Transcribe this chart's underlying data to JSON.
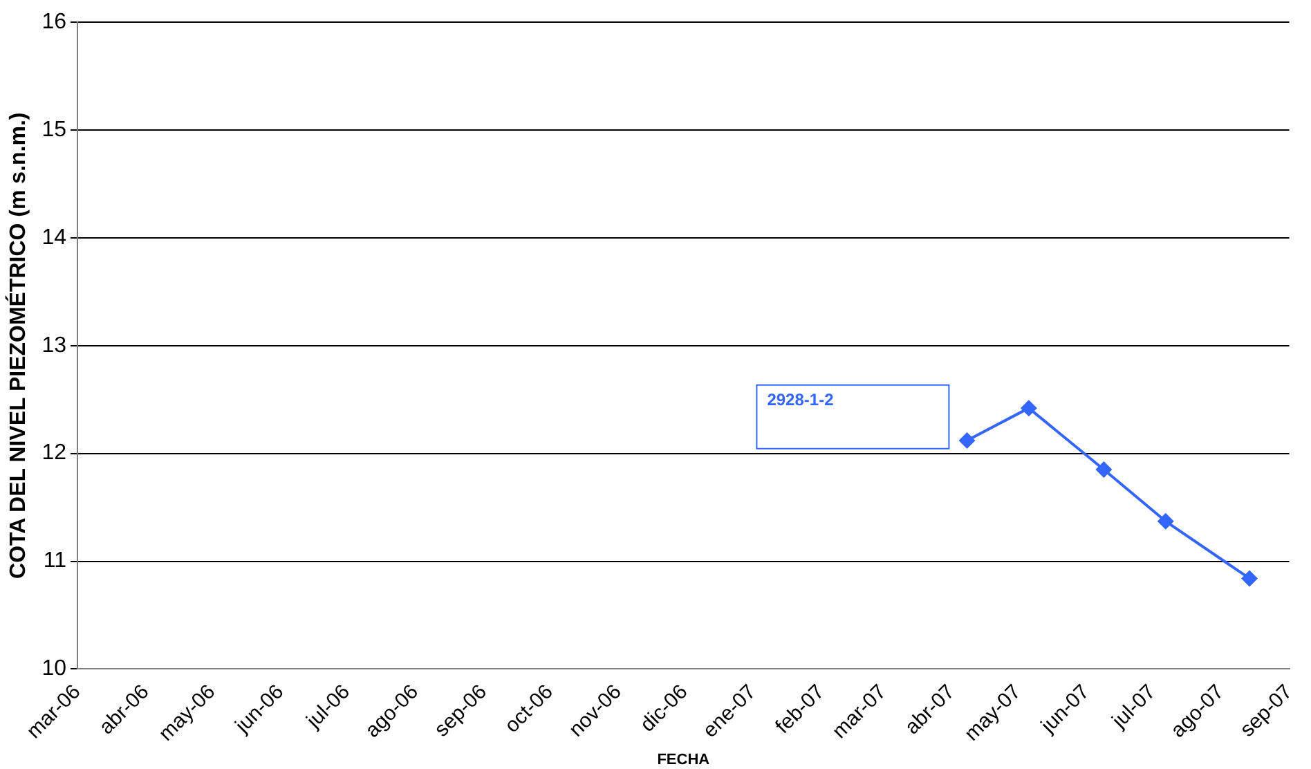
{
  "chart_data": {
    "type": "line",
    "xlabel": "FECHA",
    "ylabel": "COTA DEL NIVEL PIEZOMÉTRICO (m s.n.m.)",
    "series": [
      {
        "name": "2928-1-2",
        "color": "#3366ff",
        "x": [
          "2007-04-08",
          "2007-05-06",
          "2007-06-09",
          "2007-07-07",
          "2007-08-14"
        ],
        "values": [
          12.12,
          12.42,
          11.85,
          11.37,
          10.84
        ]
      }
    ],
    "xlim": [
      "2006-03",
      "2007-09"
    ],
    "xticks": [
      {
        "value": "2006-03",
        "label": "mar-06"
      },
      {
        "value": "2006-04",
        "label": "abr-06"
      },
      {
        "value": "2006-05",
        "label": "may-06"
      },
      {
        "value": "2006-06",
        "label": "jun-06"
      },
      {
        "value": "2006-07",
        "label": "jul-06"
      },
      {
        "value": "2006-08",
        "label": "ago-06"
      },
      {
        "value": "2006-09",
        "label": "sep-06"
      },
      {
        "value": "2006-10",
        "label": "oct-06"
      },
      {
        "value": "2006-11",
        "label": "nov-06"
      },
      {
        "value": "2006-12",
        "label": "dic-06"
      },
      {
        "value": "2007-01",
        "label": "ene-07"
      },
      {
        "value": "2007-02",
        "label": "feb-07"
      },
      {
        "value": "2007-03",
        "label": "mar-07"
      },
      {
        "value": "2007-04",
        "label": "abr-07"
      },
      {
        "value": "2007-05",
        "label": "may-07"
      },
      {
        "value": "2007-06",
        "label": "jun-07"
      },
      {
        "value": "2007-07",
        "label": "jul-07"
      },
      {
        "value": "2007-08",
        "label": "ago-07"
      },
      {
        "value": "2007-09",
        "label": "sep-07"
      }
    ],
    "ylim": [
      10,
      16
    ],
    "yticks": [
      10,
      11,
      12,
      13,
      14,
      15,
      16
    ],
    "grid": "y",
    "legend": "center",
    "marker": "diamond",
    "line_style": "solid"
  }
}
